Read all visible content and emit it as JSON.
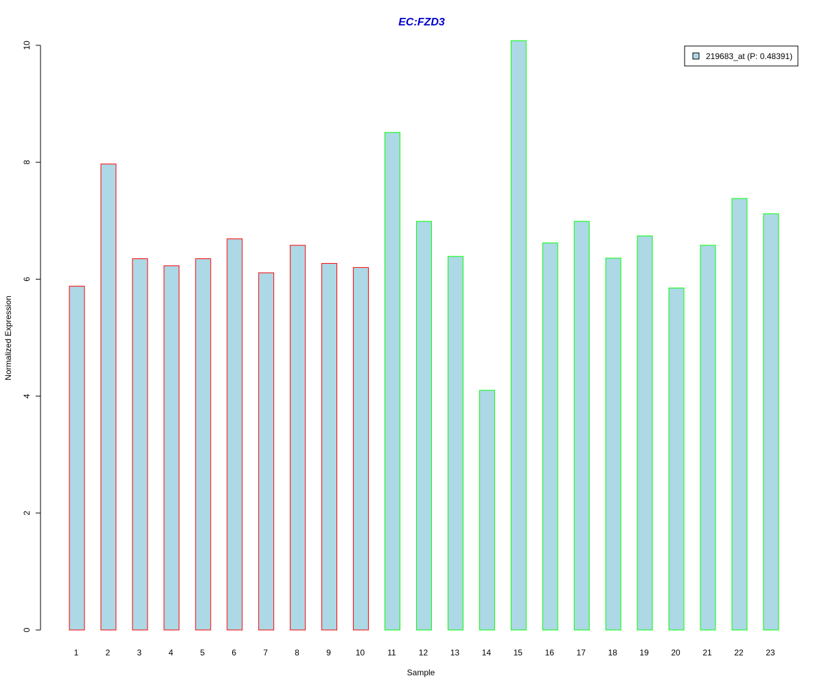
{
  "colors": {
    "bar_fill": "#add8e6",
    "group1_border": "#ff0000",
    "group2_border": "#00ff00",
    "title": "#0000cc",
    "axis": "#000000"
  },
  "chart_data": {
    "type": "bar",
    "title": "EC:FZD3",
    "xlabel": "Sample",
    "ylabel": "Normalized Expression",
    "categories": [
      "1",
      "2",
      "3",
      "4",
      "5",
      "6",
      "7",
      "8",
      "9",
      "10",
      "11",
      "12",
      "13",
      "14",
      "15",
      "16",
      "17",
      "18",
      "19",
      "20",
      "21",
      "22",
      "23"
    ],
    "series": [
      {
        "name": "219683_at (P: 0.48391)",
        "values": [
          5.88,
          7.97,
          6.35,
          6.23,
          6.35,
          6.69,
          6.11,
          6.58,
          6.27,
          6.2,
          8.51,
          6.99,
          6.39,
          4.1,
          10.08,
          6.62,
          6.99,
          6.36,
          6.74,
          5.85,
          6.58,
          7.38,
          7.12
        ]
      }
    ],
    "groups": [
      1,
      1,
      1,
      1,
      1,
      1,
      1,
      1,
      1,
      1,
      2,
      2,
      2,
      2,
      2,
      2,
      2,
      2,
      2,
      2,
      2,
      2,
      2
    ],
    "ylim": [
      0,
      10
    ],
    "yticks": [
      "0",
      "2",
      "4",
      "6",
      "8",
      "10"
    ],
    "grid": false,
    "legend_position": "top-right"
  }
}
